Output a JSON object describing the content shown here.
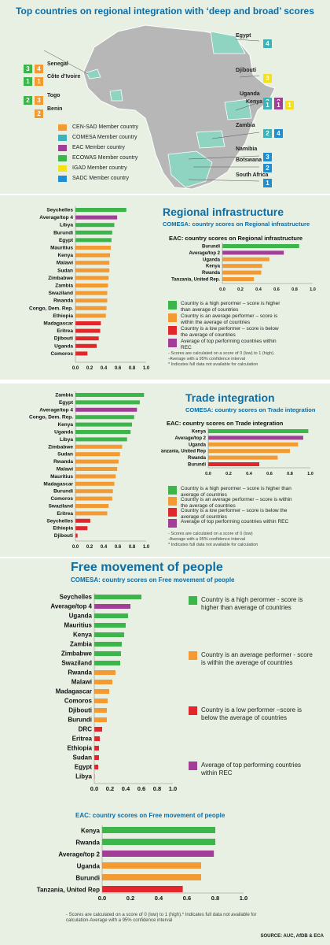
{
  "colors": {
    "green": "#3cb54a",
    "orange": "#f39a32",
    "red": "#e3262c",
    "purple": "#a23d98",
    "yellow": "#f4e11b",
    "blue": "#1f8fd2",
    "teal": "#3bb3b9"
  },
  "map": {
    "title": "Top countries on regional integration with ‘deep and broad’ scores",
    "left_labels": [
      {
        "name": "Senegal",
        "badges": [
          {
            "t": "4",
            "c": "orange"
          },
          {
            "t": "3",
            "c": "green"
          }
        ]
      },
      {
        "name": "Côte d’Ivoire",
        "badges": [
          {
            "t": "1",
            "c": "orange"
          },
          {
            "t": "1",
            "c": "green"
          }
        ]
      },
      {
        "name": "Togo",
        "badges": [
          {
            "t": "3",
            "c": "orange"
          },
          {
            "t": "2",
            "c": "green"
          }
        ]
      },
      {
        "name": "Benin",
        "badges": [
          {
            "t": "2",
            "c": "orange"
          }
        ]
      }
    ],
    "right_labels": [
      {
        "name": "Egypt",
        "badges": [
          {
            "t": "4",
            "c": "teal"
          }
        ]
      },
      {
        "name": "Djibouti",
        "badges": [
          {
            "t": "3",
            "c": "yellow"
          }
        ]
      },
      {
        "name": "Uganda",
        "badges": [
          {
            "t": "3",
            "c": "teal"
          },
          {
            "t": "2",
            "c": "purple"
          }
        ]
      },
      {
        "name": "Kenya",
        "badges": [
          {
            "t": "1",
            "c": "teal"
          },
          {
            "t": "1",
            "c": "purple"
          },
          {
            "t": "1",
            "c": "yellow"
          }
        ]
      },
      {
        "name": "Zambia",
        "badges": [
          {
            "t": "2",
            "c": "teal"
          },
          {
            "t": "4",
            "c": "blue"
          }
        ]
      },
      {
        "name": "Namibia",
        "badges": [
          {
            "t": "3",
            "c": "blue"
          }
        ]
      },
      {
        "name": "Botswana",
        "badges": [
          {
            "t": "2",
            "c": "blue"
          }
        ]
      },
      {
        "name": "South Africa",
        "badges": [
          {
            "t": "1",
            "c": "blue"
          }
        ]
      }
    ],
    "legend": [
      {
        "label": "CEN-SAD Member country",
        "c": "orange"
      },
      {
        "label": "COMESA Member country",
        "c": "teal"
      },
      {
        "label": "EAC Member country",
        "c": "purple"
      },
      {
        "label": "ECOWAS Member country",
        "c": "green"
      },
      {
        "label": "IGAD Member country",
        "c": "yellow"
      },
      {
        "label": "SADC Member country",
        "c": "blue"
      }
    ]
  },
  "infra": {
    "title": "Regional infrastructure",
    "subtitle": "COMESA: country scores on Regional infrastructure",
    "eac_title": "EAC: country scores on Regional infrastructure",
    "legend": [
      {
        "c": "green",
        "text": "Country is a high perormer – score is higher than average of countries"
      },
      {
        "c": "orange",
        "text": "Country is an average performer – score is within the average of countries"
      },
      {
        "c": "red",
        "text": "Country is a low performer – score is below the average of countries"
      },
      {
        "c": "purple",
        "text": "Average of top performing countries within REC"
      }
    ],
    "notes": "- Scores are calculated on a score of 0 (low) to 1 (high).\n-Average with a 95% confidence interval\n* Indicates full data not available for calculation"
  },
  "trade": {
    "title": "Trade integration",
    "subtitle": "COMESA: country scores on Trade integration",
    "eac_title": "EAC: country scores on Trade integration",
    "legend": [
      {
        "c": "green",
        "text": "Country is a high perormer – score is higher than average of countries"
      },
      {
        "c": "orange",
        "text": "Country is an average performer – score is within the average of countries"
      },
      {
        "c": "red",
        "text": "Country is a low performer – score is below the average of countries"
      },
      {
        "c": "purple",
        "text": "Average of top performing countries within REC"
      }
    ],
    "notes": "- Scores are calculated on a score of 0 (low)\n-Average with a 95% confidence interval\n* Indicates full data not available for calculation"
  },
  "movement": {
    "title": "Free movement of people",
    "subtitle": "COMESA: country scores on Free movement of people",
    "eac_title": "EAC: country scores on Free movement of people",
    "legend": [
      {
        "c": "green",
        "text": "Country is a high perormer - score is higher than average of countries"
      },
      {
        "c": "orange",
        "text": "Country is an average performer - score is within the average of countries"
      },
      {
        "c": "red",
        "text": "Country is a low performer –score is below the average of countries"
      },
      {
        "c": "purple",
        "text": "Average of top performing countries within REC"
      }
    ],
    "notes": "- Scores are calculated on a score of 0 (low)     to 1 (high).* Indicates full data not available for calculation-Average with a 95% confidence interval",
    "source": "SOURCE: AUC, AfDB & ECA"
  },
  "chart_data": [
    {
      "id": "infra_comesa",
      "type": "bar",
      "orientation": "horizontal",
      "title": "COMESA: country scores on Regional infrastructure",
      "categories": [
        "Seychelles",
        "Average/top 4",
        "Libya",
        "Burundi",
        "Egypt",
        "Mauritius",
        "Kenya",
        "Malawi",
        "Sudan",
        "Zimbabwe",
        "Zambia",
        "Swaziland",
        "Rwanda",
        "Congo, Dem. Rep.",
        "Ethiopia",
        "Madagascar",
        "Eritrea",
        "Djibouti",
        "Uganda",
        "Comoros"
      ],
      "values": [
        0.72,
        0.59,
        0.55,
        0.52,
        0.51,
        0.5,
        0.49,
        0.48,
        0.48,
        0.47,
        0.46,
        0.45,
        0.45,
        0.44,
        0.43,
        0.36,
        0.35,
        0.33,
        0.3,
        0.17
      ],
      "colors": [
        "green",
        "purple",
        "green",
        "green",
        "green",
        "orange",
        "orange",
        "orange",
        "orange",
        "orange",
        "orange",
        "orange",
        "orange",
        "orange",
        "orange",
        "red",
        "red",
        "red",
        "red",
        "red"
      ],
      "ticks": [
        "0.0",
        "0.2",
        "0.4",
        "0.6",
        "0.8",
        "1.0"
      ],
      "xlim": [
        0,
        1
      ]
    },
    {
      "id": "infra_eac",
      "type": "bar",
      "orientation": "horizontal",
      "title": "EAC: country scores on Regional infrastructure",
      "categories": [
        "Burundi",
        "Average/top 2",
        "Uganda",
        "Kenya",
        "Rwanda",
        "Tanzania, United Rep."
      ],
      "values": [
        0.85,
        0.68,
        0.52,
        0.44,
        0.43,
        0.35
      ],
      "colors": [
        "green",
        "purple",
        "orange",
        "orange",
        "orange",
        "orange"
      ],
      "ticks": [
        "0.0",
        "0.2",
        "0.4",
        "0.6",
        "0.8",
        "1.0"
      ],
      "xlim": [
        0,
        1
      ]
    },
    {
      "id": "trade_comesa",
      "type": "bar",
      "orientation": "horizontal",
      "title": "COMESA: country scores on Trade integration",
      "categories": [
        "Zambia",
        "Egypt",
        "Average/top 4",
        "Congo, Dem. Rep.",
        "Kenya",
        "Uganda",
        "Libya",
        "Zimbabwe",
        "Sudan",
        "Rwanda",
        "Malawi",
        "Mauritius",
        "Madagascar",
        "Burundi",
        "Comoros",
        "Swaziland",
        "Eritrea",
        "Seychelles",
        "Ethiopia",
        "Djibouti"
      ],
      "values": [
        0.97,
        0.91,
        0.87,
        0.83,
        0.8,
        0.78,
        0.73,
        0.66,
        0.63,
        0.61,
        0.59,
        0.57,
        0.55,
        0.53,
        0.52,
        0.47,
        0.45,
        0.21,
        0.17,
        0.03
      ],
      "colors": [
        "green",
        "green",
        "purple",
        "green",
        "green",
        "green",
        "green",
        "orange",
        "orange",
        "orange",
        "orange",
        "orange",
        "orange",
        "orange",
        "orange",
        "orange",
        "orange",
        "red",
        "red",
        "red"
      ],
      "ticks": [
        "0.0",
        "0.2",
        "0.4",
        "0.6",
        "0.8",
        "1.0"
      ],
      "xlim": [
        0,
        1
      ]
    },
    {
      "id": "trade_eac",
      "type": "bar",
      "orientation": "horizontal",
      "title": "EAC: country scores on Trade integration",
      "categories": [
        "Kenya",
        "Average/top 2",
        "Uganda",
        "Tanzania, United Rep",
        "Rwanda",
        "Burundi"
      ],
      "values": [
        0.98,
        0.93,
        0.88,
        0.8,
        0.68,
        0.5
      ],
      "colors": [
        "green",
        "purple",
        "orange",
        "orange",
        "orange",
        "red"
      ],
      "ticks": [
        "0.0",
        "0.2",
        "0.4",
        "0.6",
        "0.8",
        "1.0"
      ],
      "xlim": [
        0,
        1
      ]
    },
    {
      "id": "move_comesa",
      "type": "bar",
      "orientation": "horizontal",
      "title": "COMESA: country scores on Free movement of people",
      "categories": [
        "Seychelles",
        "Average/top 4",
        "Uganda",
        "Mauritius",
        "Kenya",
        "Zambia",
        "Zimbabwe",
        "Swaziland",
        "Rwanda",
        "Malawi",
        "Madagascar",
        "Comoros",
        "Djibouti",
        "Burundi",
        "DRC",
        "Eritrea",
        "Ethiopia",
        "Sudan",
        "Egypt",
        "Libya"
      ],
      "values": [
        0.6,
        0.46,
        0.43,
        0.4,
        0.38,
        0.35,
        0.34,
        0.33,
        0.27,
        0.23,
        0.19,
        0.17,
        0.16,
        0.16,
        0.1,
        0.07,
        0.06,
        0.06,
        0.05,
        0.0
      ],
      "colors": [
        "green",
        "purple",
        "green",
        "green",
        "green",
        "green",
        "green",
        "green",
        "orange",
        "orange",
        "orange",
        "orange",
        "orange",
        "orange",
        "red",
        "red",
        "red",
        "red",
        "red",
        "red"
      ],
      "ticks": [
        "0.0",
        "0.2",
        "0.4",
        "0.6",
        "0.8",
        "1.0"
      ],
      "xlim": [
        0,
        1
      ]
    },
    {
      "id": "move_eac",
      "type": "bar",
      "orientation": "horizontal",
      "title": "EAC: country scores on Free movement of people",
      "categories": [
        "Kenya",
        "Rwanda",
        "Average/top 2",
        "Uganda",
        "Burundi",
        "Tanzania, United Rep"
      ],
      "values": [
        0.8,
        0.8,
        0.79,
        0.7,
        0.7,
        0.57
      ],
      "colors": [
        "green",
        "green",
        "purple",
        "orange",
        "orange",
        "red"
      ],
      "ticks": [
        "0.0",
        "0.2",
        "0.4",
        "0.6",
        "0.8",
        "1.0"
      ],
      "xlim": [
        0,
        1
      ]
    }
  ]
}
